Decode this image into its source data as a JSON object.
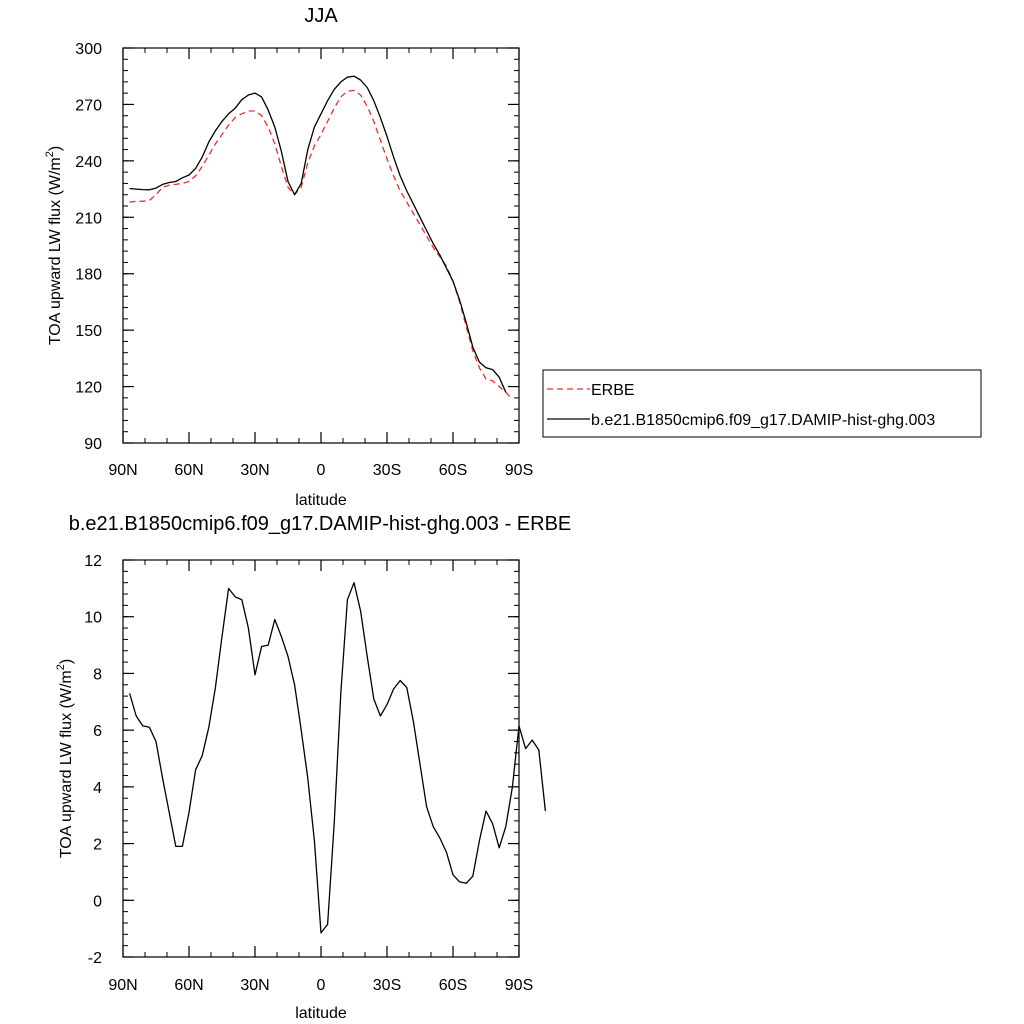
{
  "chart_data": [
    {
      "type": "line",
      "title": "JJA",
      "xlabel": "latitude",
      "ylabel": "TOA upward LW flux (W/m",
      "ylabel_sup": "2",
      "ylabel_tail": ")",
      "xlim": [
        90,
        -90
      ],
      "ylim": [
        90,
        300
      ],
      "xticks": [
        90,
        60,
        30,
        0,
        -30,
        -60,
        -90
      ],
      "xtick_labels": [
        "90N",
        "60N",
        "30N",
        "0",
        "30S",
        "60S",
        "90S"
      ],
      "yticks": [
        90,
        120,
        150,
        180,
        210,
        240,
        270,
        300
      ],
      "ytick_labels": [
        "90",
        "120",
        "150",
        "180",
        "210",
        "240",
        "270",
        "300"
      ],
      "legend_position": "right",
      "series": [
        {
          "name": "ERBE",
          "color": "#e8322a",
          "dash": true,
          "points": [
            [
              87,
              218
            ],
            [
              84,
              218.5
            ],
            [
              81,
              218.5
            ],
            [
              78,
              219
            ],
            [
              75,
              222
            ],
            [
              72,
              226
            ],
            [
              69,
              227
            ],
            [
              66,
              227.5
            ],
            [
              63,
              228
            ],
            [
              60,
              229
            ],
            [
              57,
              232
            ],
            [
              54,
              237
            ],
            [
              51,
              243
            ],
            [
              48,
              249
            ],
            [
              45,
              254
            ],
            [
              42,
              259
            ],
            [
              39,
              263
            ],
            [
              36,
              265
            ],
            [
              33,
              266.5
            ],
            [
              30,
              266.5
            ],
            [
              27,
              264
            ],
            [
              24,
              258
            ],
            [
              21,
              249
            ],
            [
              18,
              237
            ],
            [
              15,
              226
            ],
            [
              12,
              222
            ],
            [
              9,
              226
            ],
            [
              6,
              239
            ],
            [
              3,
              248
            ],
            [
              0,
              254
            ],
            [
              -3,
              261
            ],
            [
              -6,
              268
            ],
            [
              -9,
              274
            ],
            [
              -12,
              277
            ],
            [
              -15,
              277.5
            ],
            [
              -18,
              275
            ],
            [
              -21,
              269
            ],
            [
              -24,
              261
            ],
            [
              -27,
              251
            ],
            [
              -30,
              241
            ],
            [
              -33,
              232
            ],
            [
              -36,
              224
            ],
            [
              -39,
              218
            ],
            [
              -42,
              212
            ],
            [
              -45,
              206
            ],
            [
              -48,
              200
            ],
            [
              -51,
              194
            ],
            [
              -54,
              189
            ],
            [
              -57,
              184
            ],
            [
              -60,
              176
            ],
            [
              -63,
              165
            ],
            [
              -66,
              152
            ],
            [
              -69,
              139
            ],
            [
              -72,
              130
            ],
            [
              -75,
              124
            ],
            [
              -78,
              123
            ],
            [
              -81,
              120
            ],
            [
              -84,
              117
            ],
            [
              -87,
              113
            ]
          ]
        },
        {
          "name": "b.e21.B1850cmip6.f09_g17.DAMIP-hist-ghg.003",
          "color": "#000000",
          "dash": false,
          "points": [
            [
              87,
              225.3
            ],
            [
              84,
              225
            ],
            [
              81,
              224.7
            ],
            [
              78,
              224.6
            ],
            [
              75,
              225.5
            ],
            [
              72,
              227.5
            ],
            [
              69,
              228.5
            ],
            [
              66,
              229
            ],
            [
              63,
              231
            ],
            [
              60,
              232.5
            ],
            [
              57,
              236
            ],
            [
              54,
              242
            ],
            [
              51,
              250
            ],
            [
              48,
              256
            ],
            [
              45,
              261
            ],
            [
              42,
              265
            ],
            [
              39,
              268
            ],
            [
              36,
              272.5
            ],
            [
              33,
              275
            ],
            [
              30,
              276
            ],
            [
              27,
              274
            ],
            [
              24,
              267
            ],
            [
              21,
              258
            ],
            [
              18,
              245
            ],
            [
              15,
              229
            ],
            [
              12,
              222
            ],
            [
              9,
              228
            ],
            [
              6,
              246
            ],
            [
              3,
              258
            ],
            [
              0,
              265
            ],
            [
              -3,
              272
            ],
            [
              -6,
              278
            ],
            [
              -9,
              282
            ],
            [
              -12,
              284.5
            ],
            [
              -15,
              285
            ],
            [
              -18,
              283
            ],
            [
              -21,
              279
            ],
            [
              -24,
              272
            ],
            [
              -27,
              263
            ],
            [
              -30,
              253
            ],
            [
              -33,
              242
            ],
            [
              -36,
              232
            ],
            [
              -39,
              224
            ],
            [
              -42,
              217
            ],
            [
              -45,
              210
            ],
            [
              -48,
              203
            ],
            [
              -51,
              196
            ],
            [
              -54,
              190
            ],
            [
              -57,
              183
            ],
            [
              -60,
              176
            ],
            [
              -63,
              166
            ],
            [
              -66,
              154
            ],
            [
              -69,
              141
            ],
            [
              -72,
              133
            ],
            [
              -75,
              130
            ],
            [
              -78,
              129
            ],
            [
              -81,
              125
            ],
            [
              -84,
              117
            ]
          ]
        }
      ]
    },
    {
      "type": "line",
      "title": "b.e21.B1850cmip6.f09_g17.DAMIP-hist-ghg.003 - ERBE",
      "xlabel": "latitude",
      "ylabel": "TOA upward LW flux (W/m",
      "ylabel_sup": "2",
      "ylabel_tail": ")",
      "xlim": [
        90,
        -90
      ],
      "ylim": [
        -2,
        12
      ],
      "xticks": [
        90,
        60,
        30,
        0,
        -30,
        -60,
        -90
      ],
      "xtick_labels": [
        "90N",
        "60N",
        "30N",
        "0",
        "30S",
        "60S",
        "90S"
      ],
      "yticks": [
        -2,
        0,
        2,
        4,
        6,
        8,
        10,
        12
      ],
      "ytick_labels": [
        "-2",
        "0",
        "2",
        "4",
        "6",
        "8",
        "10",
        "12"
      ],
      "series": [
        {
          "color": "#000000",
          "dash": false,
          "points": [
            [
              87,
              7.3
            ],
            [
              84,
              6.5
            ],
            [
              81,
              6.15
            ],
            [
              78,
              6.1
            ],
            [
              75,
              5.6
            ],
            [
              72,
              4.3
            ],
            [
              69,
              3.1
            ],
            [
              66,
              1.9
            ],
            [
              63,
              1.9
            ],
            [
              60,
              3.1
            ],
            [
              57,
              4.6
            ],
            [
              54,
              5.1
            ],
            [
              51,
              6.1
            ],
            [
              48,
              7.5
            ],
            [
              45,
              9.3
            ],
            [
              42,
              11.0
            ],
            [
              39,
              10.7
            ],
            [
              36,
              10.6
            ],
            [
              33,
              9.6
            ],
            [
              30,
              7.95
            ],
            [
              27,
              8.95
            ],
            [
              24,
              9.0
            ],
            [
              21,
              9.9
            ],
            [
              18,
              9.3
            ],
            [
              15,
              8.6
            ],
            [
              12,
              7.6
            ],
            [
              9,
              6.0
            ],
            [
              6,
              4.3
            ],
            [
              3,
              2.1
            ],
            [
              0,
              -1.15
            ],
            [
              -3,
              -0.85
            ],
            [
              -6,
              2.7
            ],
            [
              -9,
              7.3
            ],
            [
              -12,
              10.6
            ],
            [
              -15,
              11.2
            ],
            [
              -18,
              10.2
            ],
            [
              -21,
              8.6
            ],
            [
              -24,
              7.1
            ],
            [
              -27,
              6.5
            ],
            [
              -30,
              6.9
            ],
            [
              -33,
              7.45
            ],
            [
              -36,
              7.75
            ],
            [
              -39,
              7.5
            ],
            [
              -42,
              6.3
            ],
            [
              -45,
              4.8
            ],
            [
              -48,
              3.3
            ],
            [
              -51,
              2.6
            ],
            [
              -54,
              2.2
            ],
            [
              -57,
              1.7
            ],
            [
              -60,
              0.9
            ],
            [
              -63,
              0.65
            ],
            [
              -66,
              0.6
            ],
            [
              -69,
              0.85
            ],
            [
              -72,
              2.1
            ],
            [
              -75,
              3.15
            ],
            [
              -78,
              2.7
            ],
            [
              -81,
              1.85
            ],
            [
              -84,
              2.6
            ],
            [
              -87,
              4.0
            ],
            [
              -90,
              6.15
            ],
            [
              -93,
              5.35
            ],
            [
              -96,
              5.65
            ],
            [
              -99,
              5.3
            ],
            [
              -102,
              3.15
            ]
          ]
        }
      ]
    }
  ]
}
